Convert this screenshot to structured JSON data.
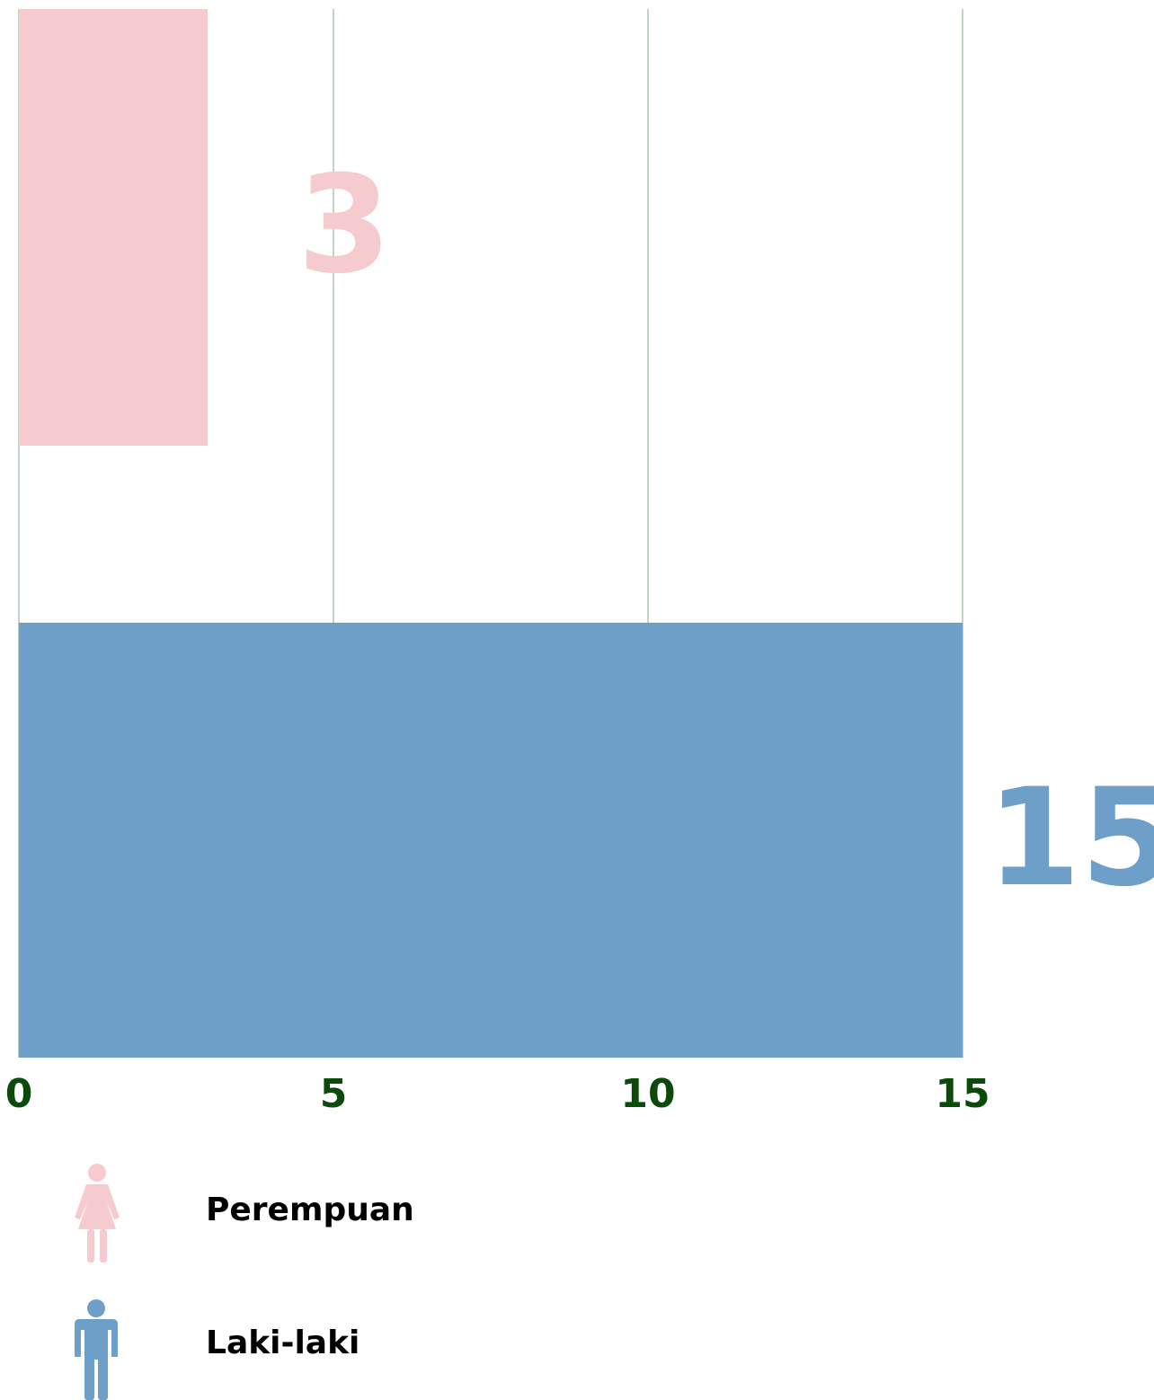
{
  "chart_data": {
    "type": "hbar",
    "series": [
      {
        "name": "Perempuan",
        "color": "#f6cbcf",
        "values": [
          3
        ]
      },
      {
        "name": "Laki-laki",
        "color": "#6e9fc8",
        "values": [
          15
        ]
      }
    ],
    "xlim": [
      0,
      15
    ],
    "xticks": [
      0,
      5,
      10,
      15
    ],
    "grid": true,
    "tick_color": "#0b4a0b",
    "grid_color": "#c3d3c3"
  }
}
